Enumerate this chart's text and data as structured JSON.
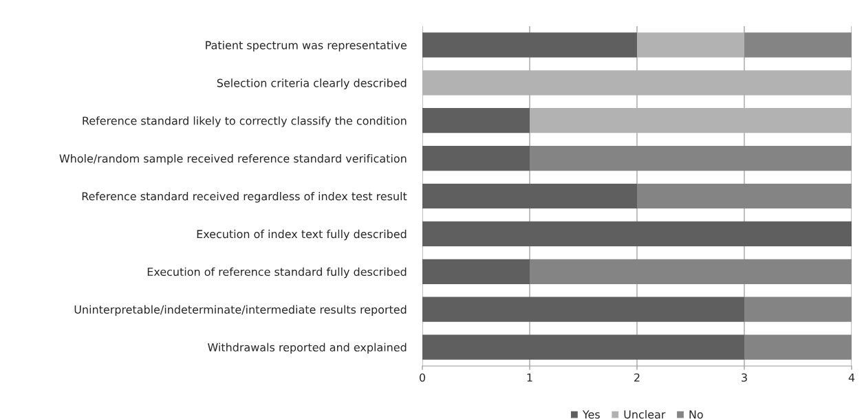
{
  "chart_data": {
    "type": "bar",
    "orientation": "horizontal",
    "stacked": true,
    "categories": [
      "Patient spectrum was representative",
      "Selection criteria clearly described",
      "Reference standard likely to correctly classify the condition",
      "Whole/random sample received reference standard verification",
      "Reference standard received regardless of index test result",
      "Execution of index text fully described",
      "Execution of reference standard fully described",
      "Uninterpretable/indeterminate/intermediate results reported",
      "Withdrawals reported and explained"
    ],
    "series": [
      {
        "name": "Yes",
        "color": "#5f5f5f",
        "values": [
          2,
          null,
          1,
          1,
          2,
          4,
          1,
          3,
          3
        ]
      },
      {
        "name": "Unclear",
        "color": "#b2b2b2",
        "values": [
          1,
          4,
          3,
          null,
          null,
          null,
          null,
          null,
          null
        ]
      },
      {
        "name": "No",
        "color": "#848484",
        "values": [
          1,
          null,
          null,
          3,
          2,
          null,
          3,
          1,
          1
        ]
      }
    ],
    "xlim": [
      0,
      4
    ],
    "xticks": [
      0,
      1,
      2,
      3,
      4
    ],
    "grid": "x",
    "legend": "bottom"
  }
}
